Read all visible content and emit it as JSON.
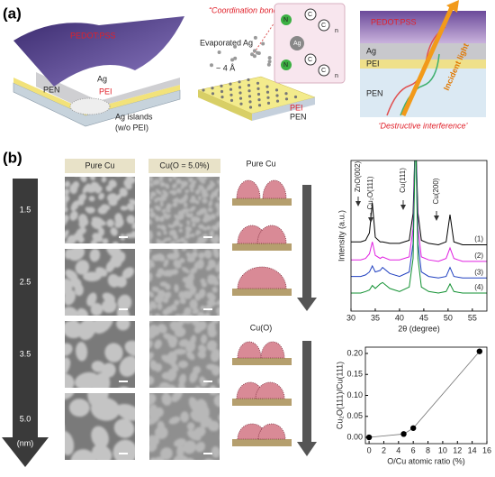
{
  "panel_a": {
    "label": "(a)",
    "left": {
      "pedot": "PEDOT:PSS",
      "ag": "Ag",
      "pei": "PEI",
      "pen": "PEN",
      "islands": "Ag islands",
      "islands_note": "(w/o PEI)"
    },
    "middle": {
      "title": "“Coordination bond”",
      "source": "Evaporated Ag",
      "spacing": "~ 4 Å",
      "pei": "PEI",
      "pen": "PEN",
      "molecule": {
        "metal": "Ag",
        "nitrogen": "N",
        "carbon": "C",
        "repeat": "n"
      }
    },
    "right": {
      "pedot": "PEDOT:PSS",
      "ag": "Ag",
      "pei": "PEI",
      "pen": "PEN",
      "light": "Incident light",
      "caption": "‘Destructive interference’"
    }
  },
  "panel_b": {
    "label": "(b)",
    "thickness": [
      "1.5",
      "2.5",
      "3.5",
      "5.0"
    ],
    "thickness_unit": "(nm)",
    "columns": [
      "Pure Cu",
      "Cu(O = 5.0%)"
    ],
    "schematic_titles": [
      "Pure Cu",
      "Cu(O)"
    ]
  },
  "chart_data": [
    {
      "type": "line",
      "xlabel": "2θ (degree)",
      "ylabel": "Intensity (a.u.)",
      "xlim": [
        30,
        58
      ],
      "xticks": [
        30,
        35,
        40,
        45,
        50,
        55
      ],
      "ylim": [
        0,
        10
      ],
      "annotations": [
        "ZnO(002)",
        "Cu₂O(111)",
        "Cu(111)",
        "Cu(200)"
      ],
      "x": [
        30,
        32,
        33,
        33.8,
        34.4,
        35,
        36,
        36.5,
        38,
        40,
        42,
        42.8,
        43.3,
        43.8,
        44.5,
        46,
        48,
        49.6,
        50.4,
        51.2,
        53,
        56,
        58
      ],
      "series": [
        {
          "name": "(1)",
          "color": "#000000",
          "values": [
            4.6,
            4.6,
            4.7,
            5.2,
            7.2,
            4.9,
            4.6,
            4.6,
            4.5,
            4.5,
            4.7,
            6.5,
            12,
            6.5,
            4.7,
            4.5,
            4.4,
            4.6,
            6.4,
            4.6,
            4.4,
            4.4,
            4.4
          ]
        },
        {
          "name": "(2)",
          "color": "#e020e0",
          "values": [
            3.4,
            3.4,
            3.5,
            3.8,
            4.6,
            3.7,
            3.5,
            3.6,
            3.4,
            3.4,
            3.6,
            5.5,
            12,
            5.5,
            3.6,
            3.4,
            3.3,
            3.5,
            4.2,
            3.5,
            3.3,
            3.3,
            3.3
          ]
        },
        {
          "name": "(3)",
          "color": "#2040c0",
          "values": [
            2.3,
            2.3,
            2.4,
            2.6,
            3.0,
            2.6,
            2.7,
            2.9,
            2.5,
            2.3,
            2.6,
            4.5,
            12,
            4.5,
            2.6,
            2.3,
            2.2,
            2.3,
            2.9,
            2.3,
            2.2,
            2.2,
            2.2
          ]
        },
        {
          "name": "(4)",
          "color": "#109030",
          "values": [
            1.2,
            1.2,
            1.3,
            1.4,
            1.7,
            1.5,
            1.8,
            1.9,
            1.5,
            1.3,
            1.6,
            3.5,
            12,
            3.5,
            1.6,
            1.3,
            1.2,
            1.3,
            1.8,
            1.3,
            1.2,
            1.2,
            1.2
          ]
        }
      ]
    },
    {
      "type": "scatter",
      "xlabel": "O/Cu atomic ratio (%)",
      "ylabel": "Cu₂O(111)/Cu(111)",
      "color": "#000000",
      "x": [
        0,
        4.7,
        6,
        15
      ],
      "values": [
        0,
        0.008,
        0.022,
        0.205
      ],
      "xlim": [
        -0.5,
        16
      ],
      "xticks": [
        0,
        2,
        4,
        6,
        8,
        10,
        12,
        14,
        16
      ],
      "ylim": [
        -0.015,
        0.215
      ],
      "yticks": [
        {
          "value": 0,
          "label": "0.00"
        },
        0.05,
        {
          "value": 0.1,
          "label": "0.10"
        },
        0.15,
        {
          "value": 0.2,
          "label": "0.20"
        }
      ]
    }
  ]
}
